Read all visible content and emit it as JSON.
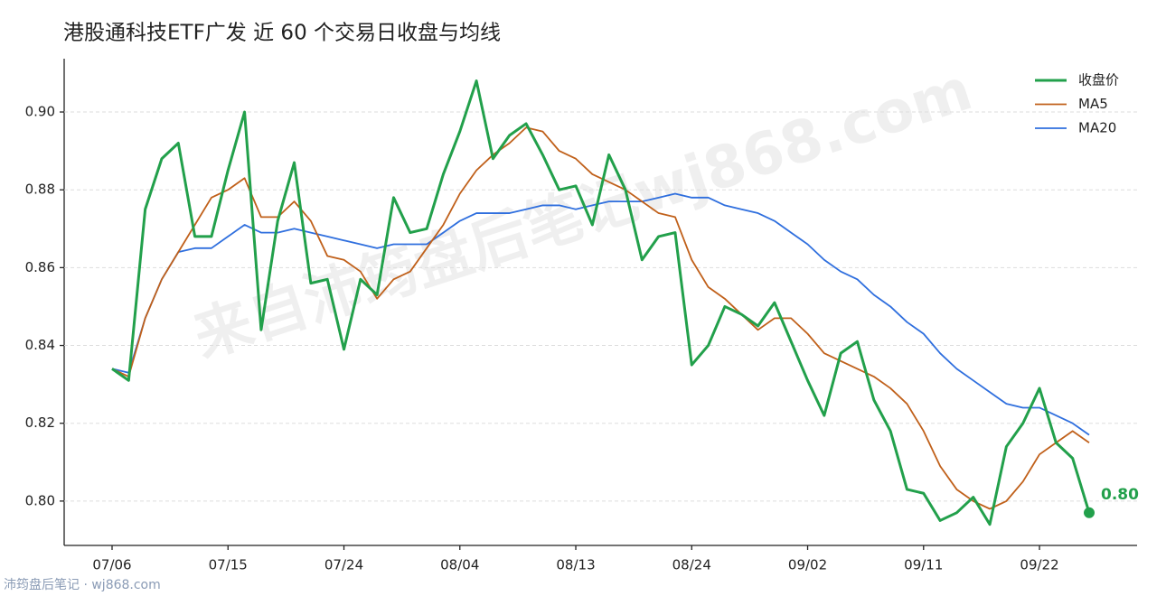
{
  "chart_data": {
    "type": "line",
    "title": "港股通科技ETF广发 近 60 个交易日收盘与均线",
    "watermark": "来自沛筠盘后笔记wj868.com",
    "footer": "沛筠盘后笔记 · wj868.com",
    "categories": [
      "07/06",
      null,
      null,
      null,
      null,
      null,
      null,
      "07/15",
      null,
      null,
      null,
      null,
      null,
      null,
      "07/24",
      null,
      null,
      null,
      null,
      null,
      null,
      "08/04",
      null,
      null,
      null,
      null,
      null,
      null,
      "08/13",
      null,
      null,
      null,
      null,
      null,
      null,
      "08/24",
      null,
      null,
      null,
      null,
      null,
      null,
      "09/02",
      null,
      null,
      null,
      null,
      null,
      null,
      "09/11",
      null,
      null,
      null,
      null,
      null,
      null,
      "09/22",
      null,
      null,
      null
    ],
    "series": [
      {
        "name": "收盘价",
        "color": "#22a04b",
        "width": 3,
        "values": [
          0.834,
          0.831,
          0.875,
          0.888,
          0.892,
          0.868,
          0.868,
          0.885,
          0.9,
          0.844,
          0.872,
          0.887,
          0.856,
          0.857,
          0.839,
          0.857,
          0.853,
          0.878,
          0.869,
          0.87,
          0.884,
          0.895,
          0.908,
          0.888,
          0.894,
          0.897,
          0.889,
          0.88,
          0.881,
          0.871,
          0.889,
          0.88,
          0.862,
          0.868,
          0.869,
          0.835,
          0.84,
          0.85,
          0.848,
          0.845,
          0.851,
          0.841,
          0.831,
          0.822,
          0.838,
          0.841,
          0.826,
          0.818,
          0.803,
          0.802,
          0.795,
          0.797,
          0.801,
          0.794,
          0.814,
          0.82,
          0.829,
          0.815,
          0.811,
          0.797
        ],
        "value_labels": [
          null,
          null,
          null,
          null,
          null,
          null,
          null,
          null,
          null,
          null,
          null,
          null,
          null,
          null,
          null,
          null,
          null,
          null,
          null,
          null,
          null,
          null,
          null,
          null,
          null,
          null,
          null,
          null,
          null,
          null,
          null,
          null,
          null,
          null,
          null,
          null,
          null,
          null,
          null,
          null,
          null,
          null,
          null,
          null,
          null,
          null,
          null,
          null,
          null,
          null,
          null,
          null,
          null,
          null,
          null,
          null,
          null,
          null,
          null,
          "0.80"
        ]
      },
      {
        "name": "MA5",
        "color": "#c0601a",
        "width": 1.8,
        "values": [
          0.834,
          0.832,
          0.847,
          0.857,
          0.864,
          0.871,
          0.878,
          0.88,
          0.883,
          0.873,
          0.873,
          0.877,
          0.872,
          0.863,
          0.862,
          0.859,
          0.852,
          0.857,
          0.859,
          0.865,
          0.871,
          0.879,
          0.885,
          0.889,
          0.892,
          0.896,
          0.895,
          0.89,
          0.888,
          0.884,
          0.882,
          0.88,
          0.877,
          0.874,
          0.873,
          0.862,
          0.855,
          0.852,
          0.848,
          0.844,
          0.847,
          0.847,
          0.843,
          0.838,
          0.836,
          0.834,
          0.832,
          0.829,
          0.825,
          0.818,
          0.809,
          0.803,
          0.8,
          0.798,
          0.8,
          0.805,
          0.812,
          0.815,
          0.818,
          0.815
        ]
      },
      {
        "name": "MA20",
        "color": "#2f6fde",
        "width": 1.8,
        "values": [
          0.834,
          0.833,
          0.847,
          0.857,
          0.864,
          0.865,
          0.865,
          0.868,
          0.871,
          0.869,
          0.869,
          0.87,
          0.869,
          0.868,
          0.867,
          0.866,
          0.865,
          0.866,
          0.866,
          0.866,
          0.869,
          0.872,
          0.874,
          0.874,
          0.874,
          0.875,
          0.876,
          0.876,
          0.875,
          0.876,
          0.877,
          0.877,
          0.877,
          0.878,
          0.879,
          0.878,
          0.878,
          0.876,
          0.875,
          0.874,
          0.872,
          0.869,
          0.866,
          0.862,
          0.859,
          0.857,
          0.853,
          0.85,
          0.846,
          0.843,
          0.838,
          0.834,
          0.831,
          0.828,
          0.825,
          0.824,
          0.824,
          0.822,
          0.82,
          0.817
        ]
      }
    ],
    "ylim": [
      0.7886,
      0.9137
    ],
    "yticks": [
      {
        "value": 0.8,
        "label": "0.80"
      },
      {
        "value": 0.82,
        "label": "0.82"
      },
      {
        "value": 0.84,
        "label": "0.84"
      },
      {
        "value": 0.86,
        "label": "0.86"
      },
      {
        "value": 0.88,
        "label": "0.88"
      },
      {
        "value": 0.9,
        "label": "0.90"
      }
    ],
    "grid": true,
    "legend": "upper right"
  }
}
